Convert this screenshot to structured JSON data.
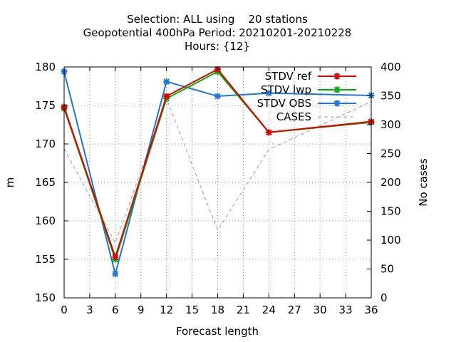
{
  "chart_data": {
    "type": "line",
    "title_lines": [
      "Selection: ALL using    20 stations",
      "Geopotential 400hPa   Period: 20210201-20210228",
      "Hours: {12}"
    ],
    "xlabel": "Forecast length",
    "ylabel": "m",
    "y2label": "No cases",
    "xlim": [
      0,
      36
    ],
    "ylim": [
      150,
      180
    ],
    "y2lim": [
      0,
      400
    ],
    "xticks": [
      0,
      3,
      6,
      9,
      12,
      15,
      18,
      21,
      24,
      27,
      30,
      33,
      36
    ],
    "yticks": [
      150,
      155,
      160,
      165,
      170,
      175,
      180
    ],
    "y2ticks": [
      0,
      50,
      100,
      150,
      200,
      250,
      300,
      350,
      400
    ],
    "grid": true,
    "legend_position": "top-right",
    "series": [
      {
        "name": "STDV ref",
        "axis": "y",
        "color": "#e00000",
        "style": "line-points",
        "x": [
          0,
          6,
          12,
          18,
          24,
          36
        ],
        "values": [
          174.8,
          155.3,
          176.2,
          179.7,
          171.5,
          172.9
        ]
      },
      {
        "name": "STDV lwp",
        "axis": "y",
        "color": "#00b000",
        "style": "line-points",
        "x": [
          0,
          6,
          12,
          18,
          24,
          36
        ],
        "values": [
          174.6,
          155.0,
          175.9,
          179.4,
          171.5,
          172.8
        ]
      },
      {
        "name": "STDV OBS",
        "axis": "y",
        "color": "#1e78d2",
        "style": "line-points",
        "x": [
          0,
          6,
          12,
          18,
          24,
          36
        ],
        "values": [
          179.4,
          153.1,
          178.1,
          176.2,
          176.6,
          176.3
        ]
      },
      {
        "name": "CASES",
        "axis": "y2",
        "color": "#a0a0a0",
        "style": "dashed",
        "x": [
          0,
          6,
          12,
          18,
          24,
          36
        ],
        "values": [
          258,
          95,
          345,
          117,
          257,
          340
        ]
      }
    ]
  }
}
